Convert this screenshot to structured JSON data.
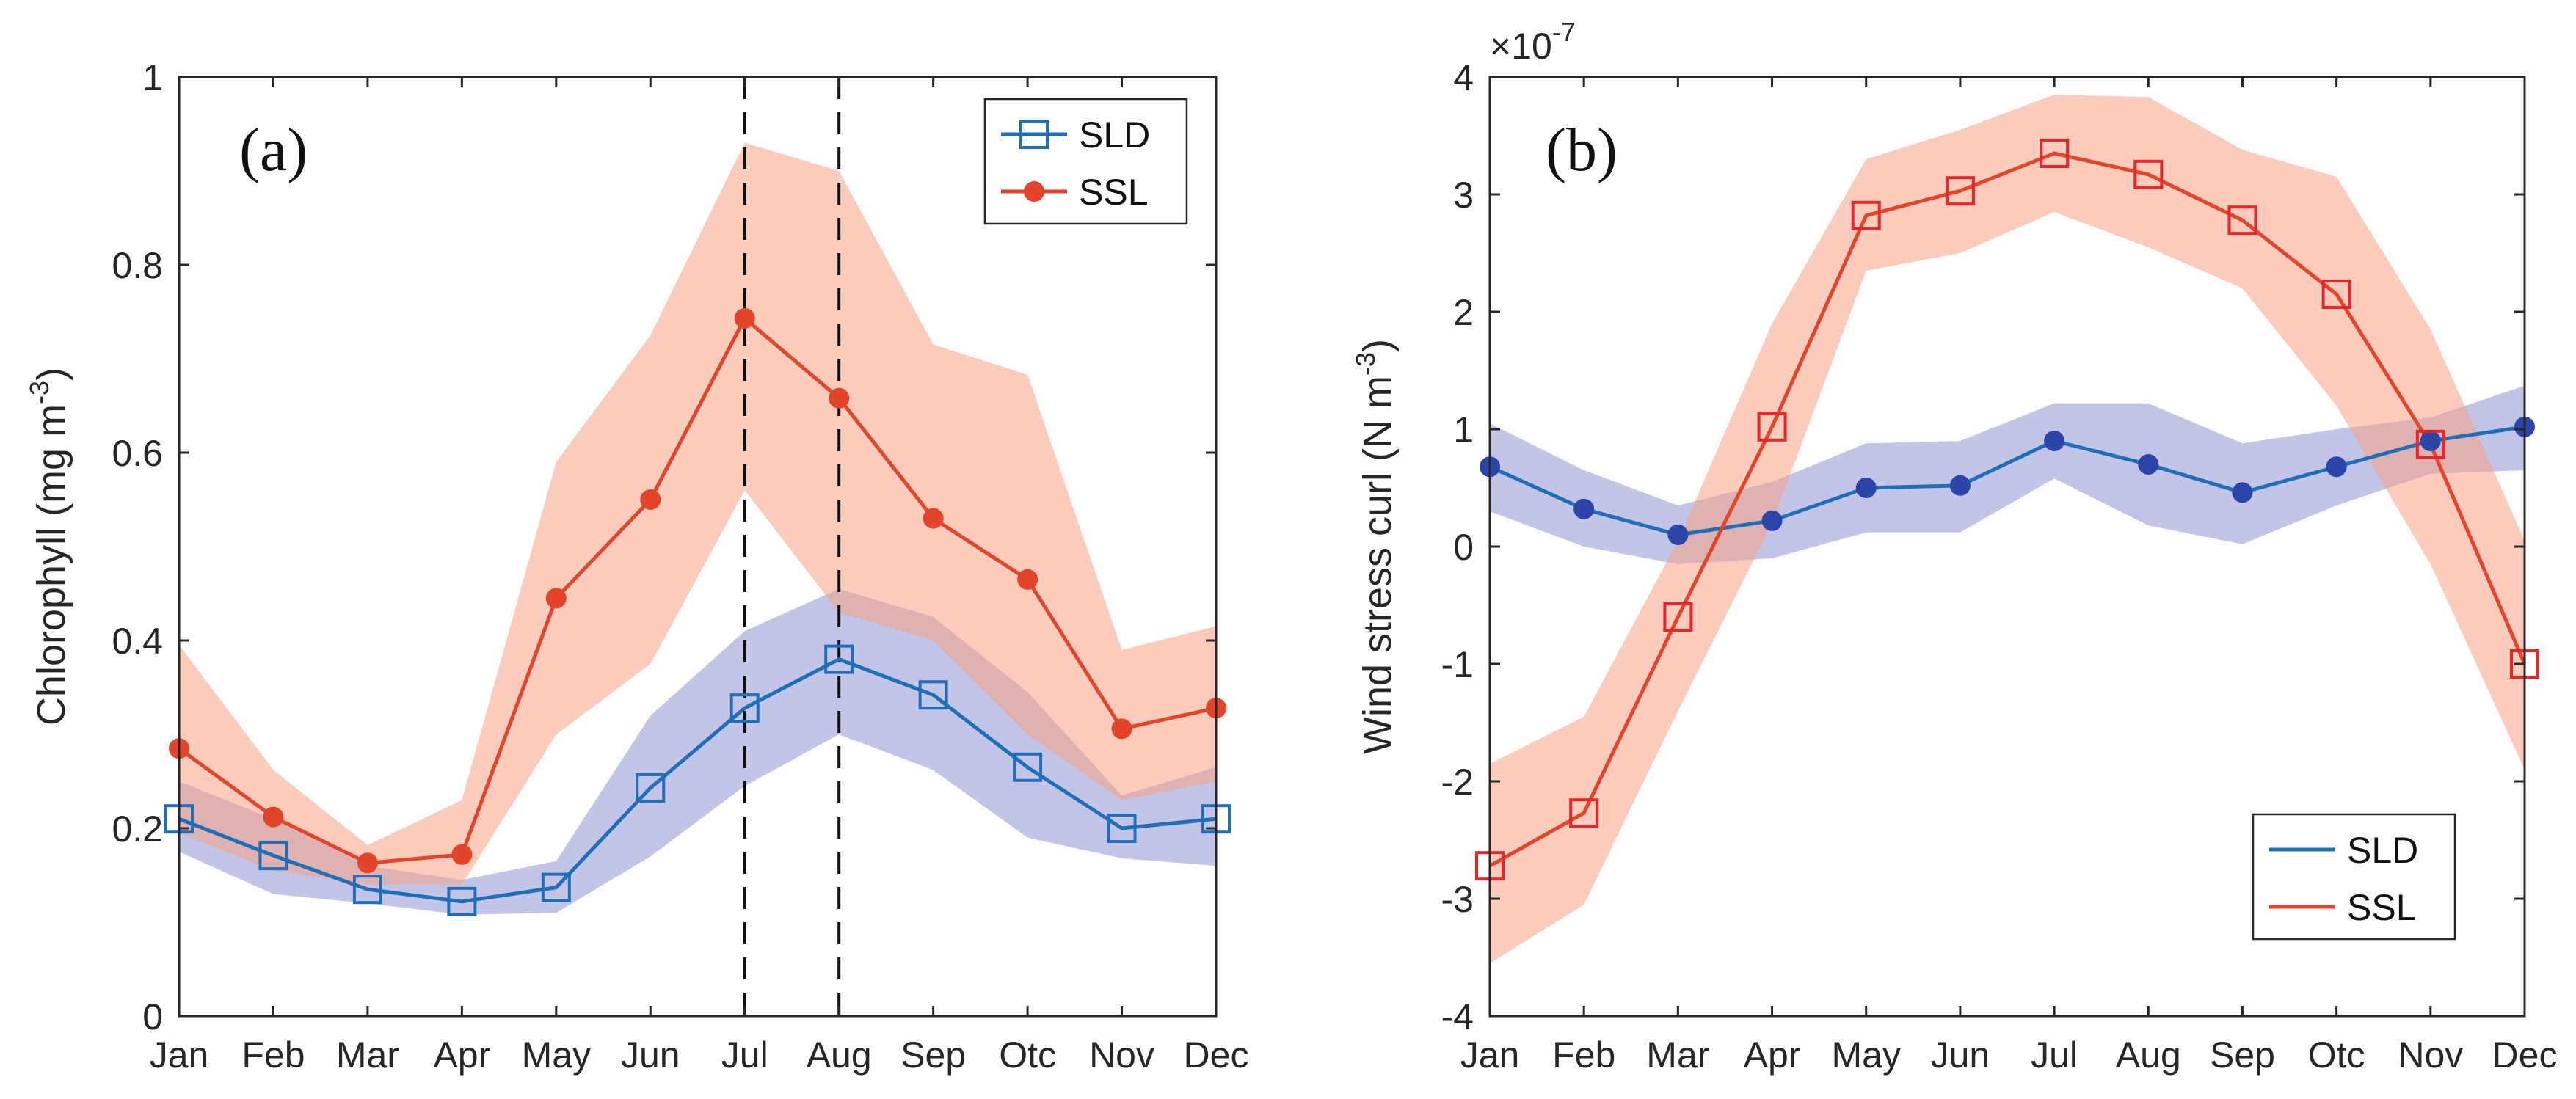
{
  "figure": {
    "colors": {
      "sld_line": "#1f6fb8",
      "ssl_line": "#e2452a",
      "sld_band": "#8f96d6",
      "ssl_band": "#f7a184",
      "ssl_marker_b": "#e8262a",
      "sld_marker_b": "#2b45a8",
      "axis": "#262626"
    }
  },
  "chart_data": [
    {
      "panel": "(a)",
      "type": "line",
      "categories": [
        "Jan",
        "Feb",
        "Mar",
        "Apr",
        "May",
        "Jun",
        "Jul",
        "Aug",
        "Sep",
        "Otc",
        "Nov",
        "Dec"
      ],
      "ylabel_main": "Chlorophyll (mg m",
      "ylabel_exp": "-3",
      "ylabel_close": ")",
      "ylim": [
        0,
        1
      ],
      "yticks": [
        0,
        0.2,
        0.4,
        0.6,
        0.8,
        1
      ],
      "ytick_labels": [
        "0",
        "0.2",
        "0.4",
        "0.6",
        "0.8",
        "1"
      ],
      "exponent_label": "",
      "vlines_at": [
        "Jul",
        "Aug"
      ],
      "legend": {
        "position": "top-right",
        "entries": [
          "SLD",
          "SSL"
        ]
      },
      "series": [
        {
          "name": "SLD",
          "marker": "square",
          "values": [
            0.21,
            0.171,
            0.135,
            0.122,
            0.137,
            0.243,
            0.328,
            0.38,
            0.342,
            0.265,
            0.2,
            0.21
          ],
          "band_lower": [
            0.175,
            0.13,
            0.12,
            0.108,
            0.11,
            0.17,
            0.245,
            0.3,
            0.262,
            0.19,
            0.168,
            0.16
          ],
          "band_upper": [
            0.25,
            0.21,
            0.16,
            0.145,
            0.165,
            0.32,
            0.41,
            0.455,
            0.425,
            0.345,
            0.235,
            0.265
          ]
        },
        {
          "name": "SSL",
          "marker": "dot",
          "values": [
            0.285,
            0.212,
            0.163,
            0.172,
            0.445,
            0.55,
            0.743,
            0.658,
            0.53,
            0.465,
            0.306,
            0.328
          ],
          "band_lower": [
            0.195,
            0.155,
            0.14,
            0.14,
            0.3,
            0.375,
            0.56,
            0.43,
            0.4,
            0.3,
            0.23,
            0.25
          ],
          "band_upper": [
            0.395,
            0.262,
            0.182,
            0.23,
            0.59,
            0.725,
            0.93,
            0.9,
            0.715,
            0.683,
            0.39,
            0.415
          ]
        }
      ]
    },
    {
      "panel": "(b)",
      "type": "line",
      "categories": [
        "Jan",
        "Feb",
        "Mar",
        "Apr",
        "May",
        "Jun",
        "Jul",
        "Aug",
        "Sep",
        "Otc",
        "Nov",
        "Dec"
      ],
      "ylabel_main": "Wind stress curl (N m",
      "ylabel_exp": "-3",
      "ylabel_close": ")",
      "ylim": [
        -4,
        4
      ],
      "yticks": [
        -4,
        -3,
        -2,
        -1,
        0,
        1,
        2,
        3,
        4
      ],
      "ytick_labels": [
        "-4",
        "-3",
        "-2",
        "-1",
        "0",
        "1",
        "2",
        "3",
        "4"
      ],
      "exponent_label": "×10",
      "exponent_power": "-7",
      "vlines_at": [],
      "legend": {
        "position": "bottom-right",
        "entries": [
          "SLD",
          "SSL"
        ]
      },
      "series": [
        {
          "name": "SLD",
          "marker": "dot",
          "values": [
            0.68,
            0.32,
            0.1,
            0.22,
            0.5,
            0.52,
            0.9,
            0.7,
            0.46,
            0.68,
            0.9,
            1.02
          ],
          "band_lower": [
            0.3,
            0.0,
            -0.15,
            -0.1,
            0.12,
            0.12,
            0.58,
            0.18,
            0.02,
            0.35,
            0.62,
            0.65
          ],
          "band_upper": [
            1.05,
            0.65,
            0.35,
            0.55,
            0.88,
            0.9,
            1.22,
            1.22,
            0.88,
            1.0,
            1.1,
            1.37
          ]
        },
        {
          "name": "SSL",
          "marker": "square",
          "values": [
            -2.72,
            -2.27,
            -0.6,
            1.02,
            2.82,
            3.03,
            3.35,
            3.17,
            2.78,
            2.15,
            0.87,
            -1.0
          ],
          "band_lower": [
            -3.55,
            -3.05,
            -1.4,
            0.2,
            2.35,
            2.5,
            2.85,
            2.55,
            2.2,
            1.2,
            -0.15,
            -1.9
          ],
          "band_upper": [
            -1.85,
            -1.45,
            0.05,
            1.9,
            3.3,
            3.55,
            3.85,
            3.83,
            3.38,
            3.15,
            1.85,
            0.05
          ]
        }
      ]
    }
  ]
}
